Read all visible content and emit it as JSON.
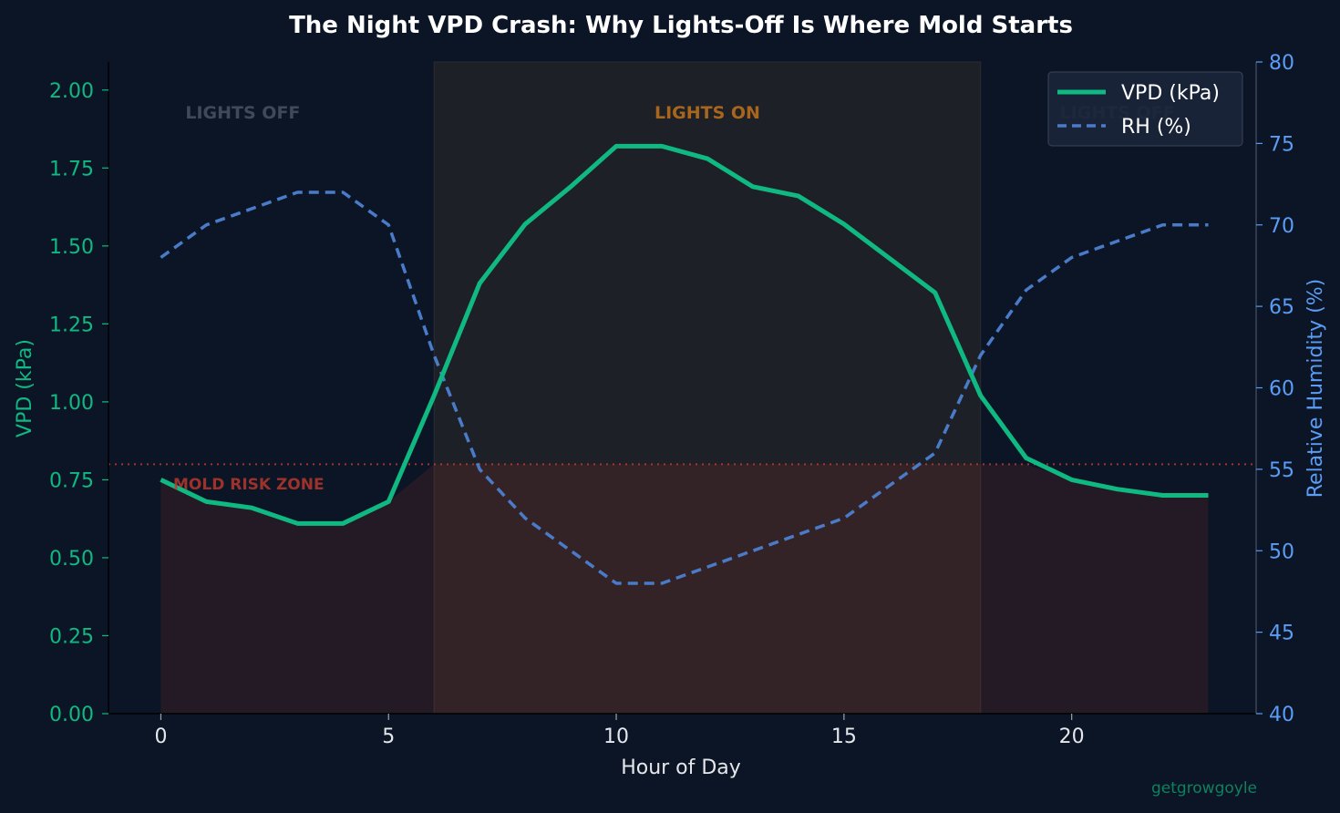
{
  "chart_data": {
    "type": "line",
    "title": "The Night VPD Crash: Why Lights-Off Is Where Mold Starts",
    "xlabel": "Hour of Day",
    "ylabel_left": "VPD (kPa)",
    "ylabel_right": "Relative Humidity (%)",
    "xlim": [
      -1.15,
      24.05
    ],
    "ylim_left": [
      0,
      2.09
    ],
    "ylim_right": [
      40,
      80
    ],
    "x_ticks": [
      0,
      5,
      10,
      15,
      20
    ],
    "y_left_ticks": [
      "0.00",
      "0.25",
      "0.50",
      "0.75",
      "1.00",
      "1.25",
      "1.50",
      "1.75",
      "2.00"
    ],
    "y_right_ticks": [
      40,
      45,
      50,
      55,
      60,
      65,
      70,
      75,
      80
    ],
    "x": [
      0,
      1,
      2,
      3,
      4,
      5,
      6,
      7,
      8,
      9,
      10,
      11,
      12,
      13,
      14,
      15,
      16,
      17,
      18,
      19,
      20,
      21,
      22,
      23
    ],
    "series": [
      {
        "name": "VPD (kPa)",
        "axis": "left",
        "style": "solid",
        "color": "#10b981",
        "values": [
          0.75,
          0.68,
          0.66,
          0.61,
          0.61,
          0.68,
          1.02,
          1.38,
          1.57,
          1.69,
          1.82,
          1.82,
          1.78,
          1.69,
          1.66,
          1.57,
          1.46,
          1.35,
          1.02,
          0.82,
          0.75,
          0.72,
          0.7,
          0.7
        ]
      },
      {
        "name": "RH (%)",
        "axis": "right",
        "style": "dashed",
        "color": "#4a7bc8",
        "values": [
          68,
          70,
          71,
          72,
          72,
          70,
          62,
          55,
          52,
          50,
          48,
          48,
          49,
          50,
          51,
          52,
          54,
          56,
          62,
          66,
          68,
          69,
          70,
          70
        ]
      }
    ],
    "threshold": {
      "value": 0.8,
      "label": "MOLD RISK ZONE",
      "color": "#c0392b"
    },
    "periods": [
      {
        "label": "LIGHTS OFF",
        "start": -1.15,
        "end": 6,
        "on": false
      },
      {
        "label": "LIGHTS ON",
        "start": 6,
        "end": 18,
        "on": true
      },
      {
        "label": "LIGHTS OFF",
        "start": 18,
        "end": 24.05,
        "on": false
      }
    ],
    "legend": {
      "placement": "top-right",
      "entries": [
        "VPD (kPa)",
        "RH (%)"
      ]
    },
    "grid": false,
    "watermark": "getgrowgoyle",
    "colors": {
      "background": "#0b1526",
      "vpd": "#10b981",
      "rh": "#4a7bc8",
      "rh_axis": "#5b9cf5",
      "mold": "#c0392b",
      "lights_on_band": "#1d2026",
      "lights_on_label": "#a8661d",
      "lights_off_label": "#3e4a5a",
      "text": "#ffffff",
      "muted_text": "#e5e7eb",
      "watermark": "#10805e"
    }
  }
}
